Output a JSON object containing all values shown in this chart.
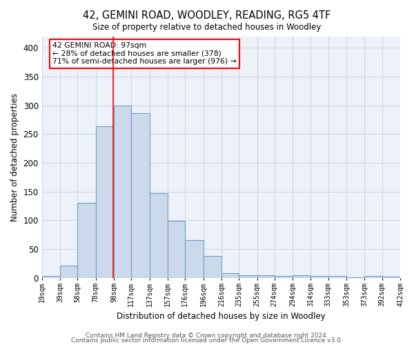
{
  "title": "42, GEMINI ROAD, WOODLEY, READING, RG5 4TF",
  "subtitle": "Size of property relative to detached houses in Woodley",
  "xlabel": "Distribution of detached houses by size in Woodley",
  "ylabel": "Number of detached properties",
  "bar_color": "#ccd9ea",
  "bar_edge_color": "#6a9ec5",
  "grid_color": "#c8d4e4",
  "background_color": "#edf1f8",
  "red_line_x": 97,
  "bin_edges": [
    19,
    39,
    58,
    78,
    98,
    117,
    137,
    157,
    176,
    196,
    216,
    235,
    255,
    274,
    294,
    314,
    333,
    353,
    373,
    392,
    412
  ],
  "bin_labels": [
    "19sqm",
    "39sqm",
    "58sqm",
    "78sqm",
    "98sqm",
    "117sqm",
    "137sqm",
    "157sqm",
    "176sqm",
    "196sqm",
    "216sqm",
    "235sqm",
    "255sqm",
    "274sqm",
    "294sqm",
    "314sqm",
    "333sqm",
    "353sqm",
    "373sqm",
    "392sqm",
    "412sqm"
  ],
  "bar_heights": [
    4,
    22,
    131,
    264,
    299,
    286,
    147,
    99,
    66,
    38,
    8,
    5,
    5,
    4,
    5,
    3,
    3,
    1,
    3,
    2
  ],
  "annotation_text": "42 GEMINI ROAD: 97sqm\n← 28% of detached houses are smaller (378)\n71% of semi-detached houses are larger (976) →",
  "footnote1": "Contains HM Land Registry data © Crown copyright and database right 2024.",
  "footnote2": "Contains public sector information licensed under the Open Government Licence v3.0.",
  "ylim": [
    0,
    420
  ],
  "yticks": [
    0,
    50,
    100,
    150,
    200,
    250,
    300,
    350,
    400
  ]
}
